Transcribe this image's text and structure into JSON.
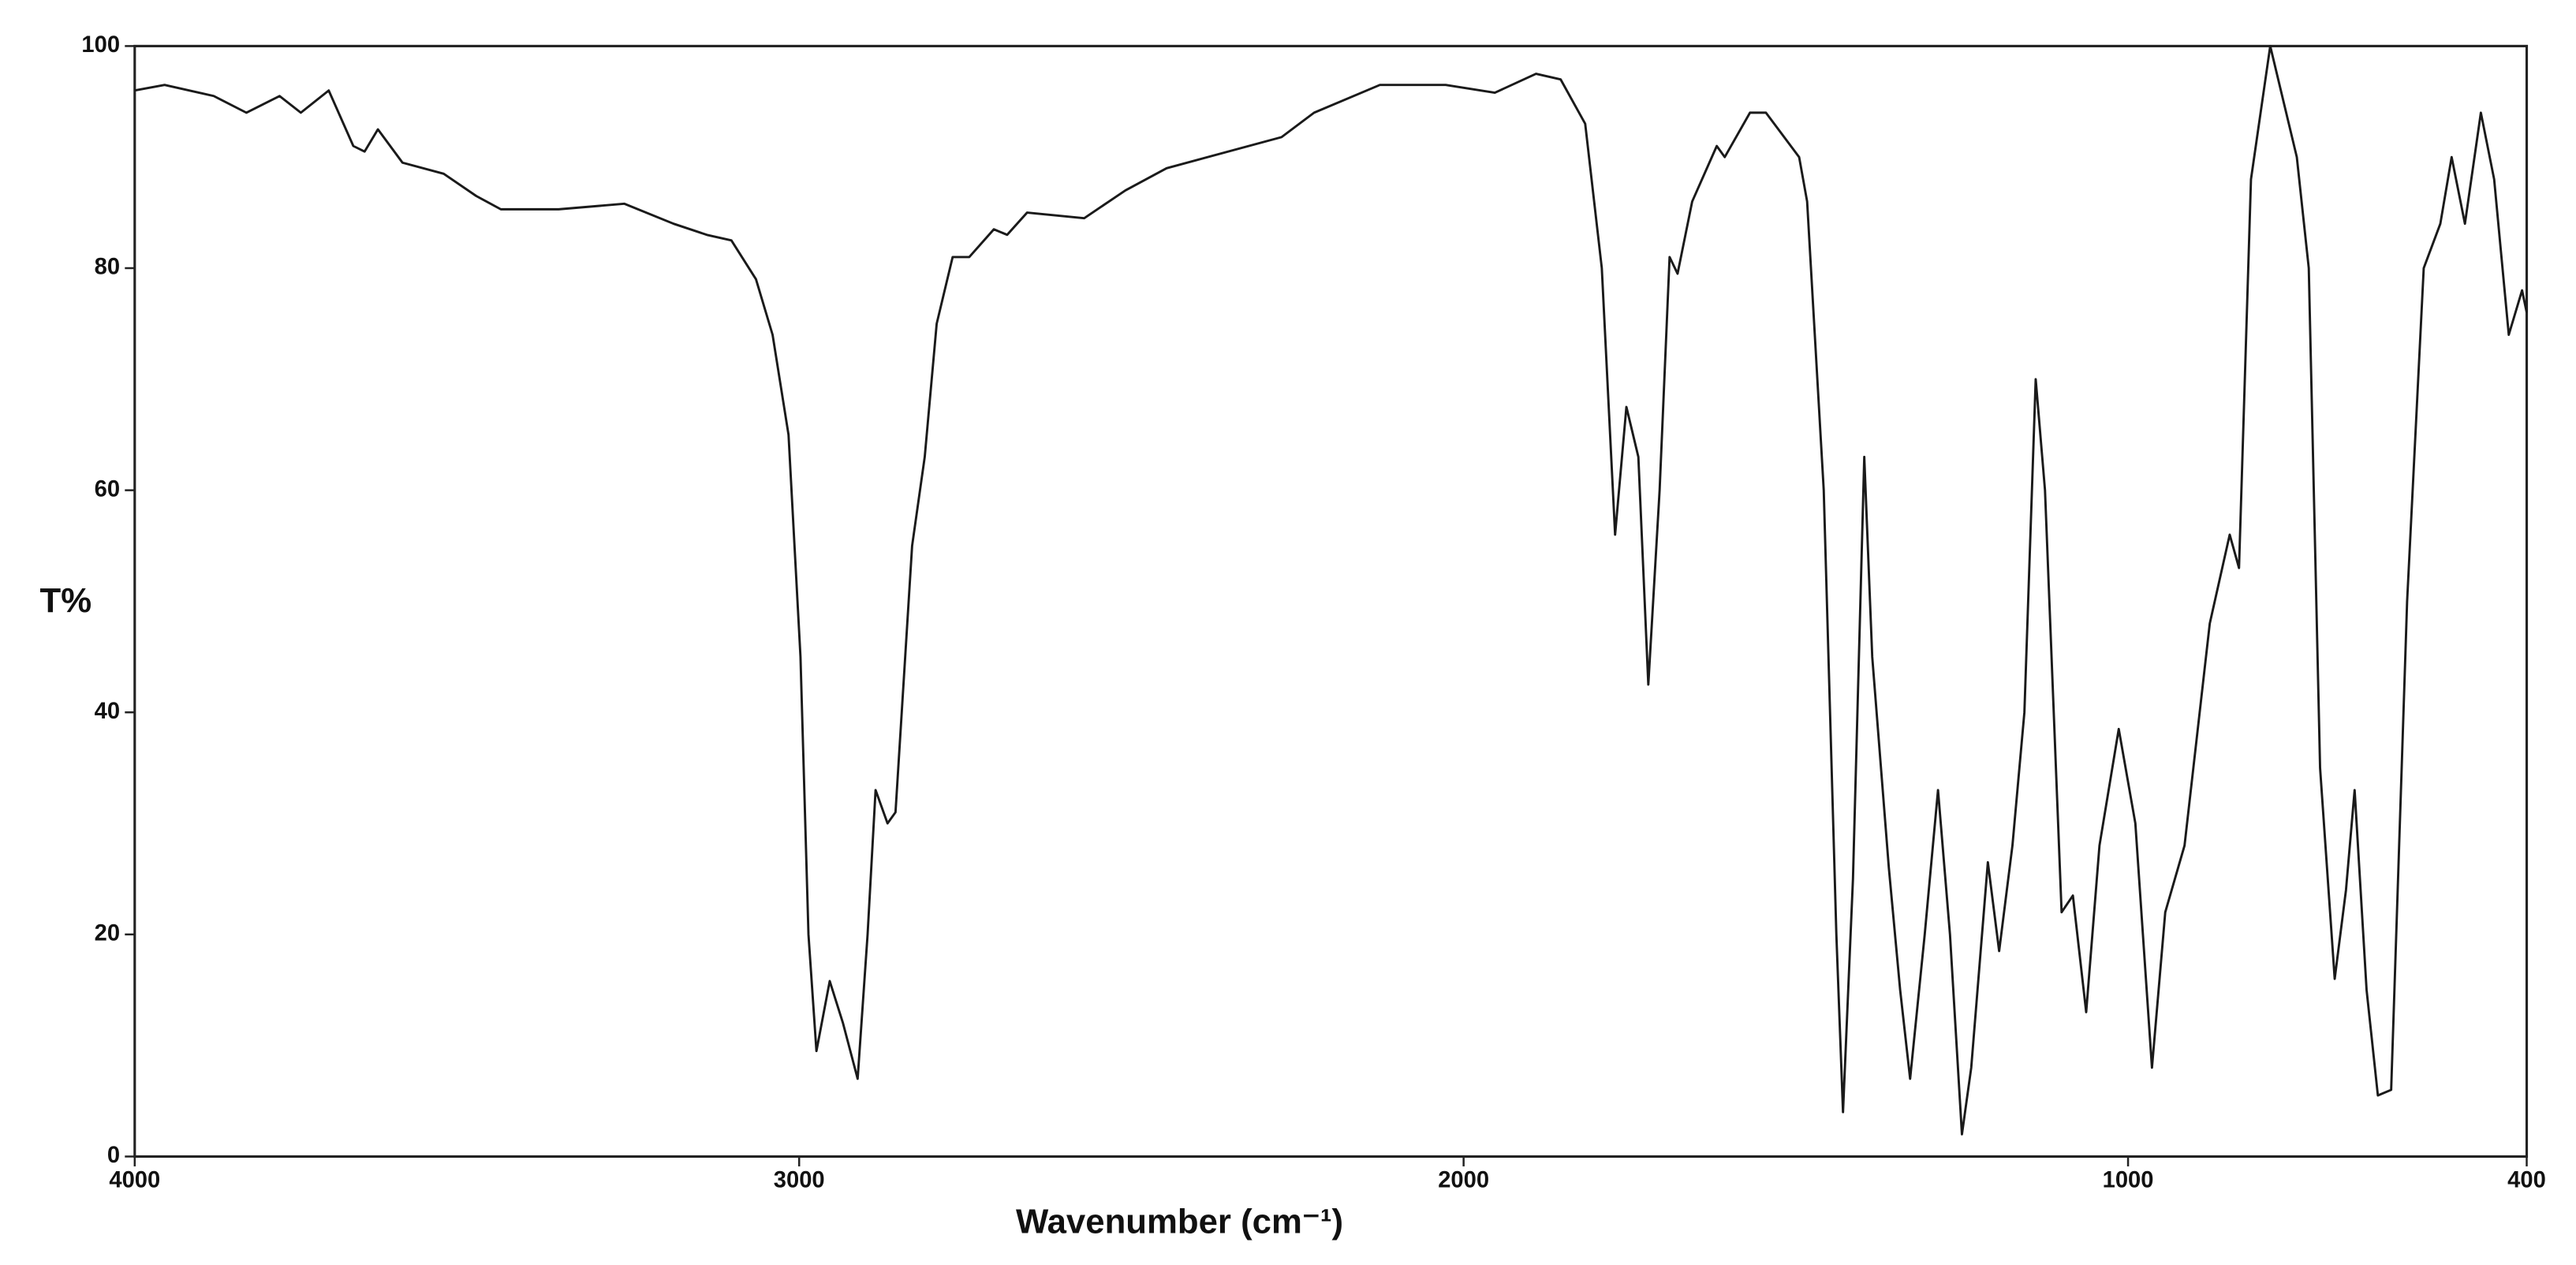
{
  "chart_data": {
    "type": "line",
    "xlabel": "Wavenumber (cm⁻¹)",
    "ylabel": "T%",
    "xlim": [
      4000,
      400
    ],
    "ylim": [
      0,
      100
    ],
    "xticks": [
      4000,
      3000,
      2000,
      1000,
      400
    ],
    "yticks": [
      0,
      20,
      40,
      60,
      80,
      100
    ],
    "grid": false,
    "color": "#1a1a1a",
    "x": [
      4000,
      3955,
      3881,
      3832,
      3782,
      3750,
      3708,
      3671,
      3654,
      3634,
      3597,
      3535,
      3486,
      3449,
      3362,
      3263,
      3189,
      3139,
      3102,
      3065,
      3040,
      3016,
      2998,
      2986,
      2974,
      2954,
      2934,
      2912,
      2897,
      2885,
      2867,
      2855,
      2830,
      2811,
      2793,
      2769,
      2744,
      2707,
      2687,
      2657,
      2571,
      2509,
      2447,
      2274,
      2225,
      2126,
      2027,
      1953,
      1891,
      1854,
      1817,
      1792,
      1772,
      1755,
      1737,
      1722,
      1705,
      1690,
      1678,
      1656,
      1619,
      1607,
      1569,
      1545,
      1495,
      1483,
      1458,
      1439,
      1429,
      1414,
      1397,
      1385,
      1360,
      1343,
      1328,
      1306,
      1286,
      1268,
      1250,
      1236,
      1211,
      1194,
      1174,
      1156,
      1139,
      1125,
      1100,
      1083,
      1063,
      1043,
      1014,
      989,
      964,
      944,
      915,
      877,
      847,
      833,
      815,
      786,
      746,
      728,
      711,
      689,
      672,
      659,
      641,
      624,
      604,
      580,
      555,
      530,
      513,
      493,
      469,
      449,
      427,
      407,
      400
    ],
    "values": [
      96,
      96.5,
      95.5,
      94,
      95.5,
      94,
      96,
      91,
      90.5,
      92.5,
      89.5,
      88.5,
      86.5,
      85.3,
      85.3,
      85.8,
      84,
      83,
      82.5,
      79,
      74,
      65,
      45,
      20,
      9.5,
      15.8,
      12,
      7,
      20,
      33,
      30,
      31,
      55,
      63,
      75,
      81,
      81,
      83.5,
      83,
      85,
      84.5,
      87,
      89,
      91.8,
      94,
      96.5,
      96.5,
      95.8,
      97.5,
      97,
      93,
      80,
      56,
      67.5,
      63,
      42.5,
      60,
      81,
      79.5,
      86,
      91,
      90,
      94,
      94,
      90,
      86,
      60,
      20,
      4,
      25,
      63,
      45,
      26,
      15,
      7,
      20,
      33,
      20,
      2,
      8,
      26.5,
      18.5,
      28,
      40,
      70,
      60,
      22,
      23.5,
      13,
      28,
      38.5,
      30,
      8,
      22,
      28,
      48,
      56,
      53,
      88,
      100,
      90,
      80,
      35,
      16,
      24,
      33,
      15,
      5.5,
      6,
      50,
      80,
      84,
      90,
      84,
      94,
      88,
      74,
      78,
      76
    ]
  }
}
